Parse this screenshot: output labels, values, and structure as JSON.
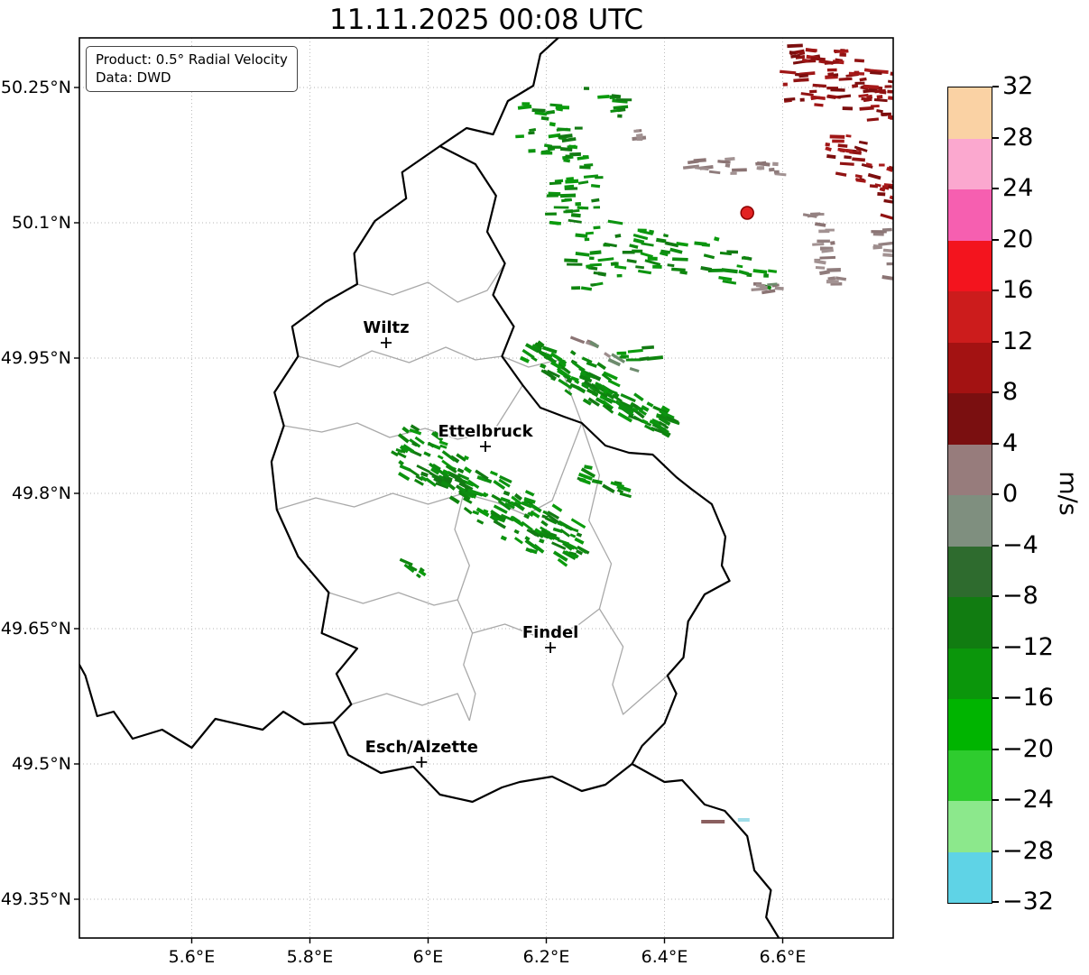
{
  "title": "11.11.2025 00:08 UTC",
  "annotation": {
    "product": "Product: 0.5° Radial Velocity",
    "source": "Data: DWD"
  },
  "map": {
    "lon_min": 5.41,
    "lon_max": 6.787,
    "lat_min": 49.307,
    "lat_max": 50.305
  },
  "axes": {
    "x_ticks": [
      {
        "value": 5.6,
        "label": "5.6°E"
      },
      {
        "value": 5.8,
        "label": "5.8°E"
      },
      {
        "value": 6.0,
        "label": "6°E"
      },
      {
        "value": 6.2,
        "label": "6.2°E"
      },
      {
        "value": 6.4,
        "label": "6.4°E"
      },
      {
        "value": 6.6,
        "label": "6.6°E"
      }
    ],
    "y_ticks": [
      {
        "value": 50.25,
        "label": "50.25°N"
      },
      {
        "value": 50.1,
        "label": "50.1°N"
      },
      {
        "value": 49.95,
        "label": "49.95°N"
      },
      {
        "value": 49.8,
        "label": "49.8°N"
      },
      {
        "value": 49.65,
        "label": "49.65°N"
      },
      {
        "value": 49.5,
        "label": "49.5°N"
      },
      {
        "value": 49.35,
        "label": "49.35°N"
      }
    ]
  },
  "colorbar": {
    "label": "m/s",
    "tick_labels": [
      "32",
      "28",
      "24",
      "20",
      "16",
      "12",
      "8",
      "4",
      "0",
      "−4",
      "−8",
      "−12",
      "−16",
      "−20",
      "−24",
      "−28",
      "−32"
    ],
    "segment_colors_top_to_bottom": [
      "#fad2a4",
      "#fba8cf",
      "#f65fb0",
      "#f3141e",
      "#cc1c1c",
      "#a31212",
      "#7a0f10",
      "#977c7c",
      "#7f8f7f",
      "#2e6b2e",
      "#117c11",
      "#0b960b",
      "#00b400",
      "#2ecc2e",
      "#8ce88c",
      "#5fd3e6"
    ]
  },
  "cities": [
    {
      "name": "Wiltz",
      "lon": 5.929,
      "lat": 49.967
    },
    {
      "name": "Ettelbruck",
      "lon": 6.097,
      "lat": 49.852
    },
    {
      "name": "Findel",
      "lon": 6.207,
      "lat": 49.629
    },
    {
      "name": "Esch/Alzette",
      "lon": 5.989,
      "lat": 49.502
    }
  ],
  "radar_site": {
    "lon": 6.54,
    "lat": 50.111,
    "color": "#e32222",
    "edge": "#8b0000"
  },
  "borders": {
    "country": [
      [
        [
          6.02,
          50.185
        ],
        [
          6.08,
          50.165
        ],
        [
          6.115,
          50.13
        ],
        [
          6.1,
          50.09
        ],
        [
          6.13,
          50.055
        ],
        [
          6.11,
          50.02
        ],
        [
          6.145,
          49.985
        ],
        [
          6.125,
          49.952
        ],
        [
          6.16,
          49.92
        ],
        [
          6.19,
          49.895
        ],
        [
          6.23,
          49.885
        ],
        [
          6.26,
          49.878
        ],
        [
          6.3,
          49.853
        ],
        [
          6.34,
          49.845
        ],
        [
          6.38,
          49.843
        ],
        [
          6.42,
          49.818
        ],
        [
          6.445,
          49.805
        ],
        [
          6.48,
          49.788
        ],
        [
          6.503,
          49.752
        ],
        [
          6.497,
          49.72
        ],
        [
          6.51,
          49.703
        ],
        [
          6.468,
          49.688
        ],
        [
          6.44,
          49.658
        ],
        [
          6.432,
          49.618
        ],
        [
          6.405,
          49.598
        ],
        [
          6.42,
          49.578
        ],
        [
          6.4,
          49.545
        ],
        [
          6.362,
          49.52
        ],
        [
          6.345,
          49.5
        ],
        [
          6.3,
          49.477
        ],
        [
          6.26,
          49.47
        ],
        [
          6.21,
          49.486
        ],
        [
          6.155,
          49.48
        ],
        [
          6.125,
          49.474
        ],
        [
          6.075,
          49.458
        ],
        [
          6.02,
          49.466
        ],
        [
          5.975,
          49.497
        ],
        [
          5.92,
          49.49
        ],
        [
          5.865,
          49.51
        ],
        [
          5.84,
          49.546
        ],
        [
          5.87,
          49.566
        ],
        [
          5.845,
          49.6
        ],
        [
          5.88,
          49.628
        ],
        [
          5.82,
          49.645
        ],
        [
          5.832,
          49.69
        ],
        [
          5.78,
          49.73
        ],
        [
          5.744,
          49.782
        ],
        [
          5.735,
          49.835
        ],
        [
          5.756,
          49.875
        ],
        [
          5.74,
          49.912
        ],
        [
          5.78,
          49.952
        ],
        [
          5.77,
          49.985
        ],
        [
          5.826,
          50.012
        ],
        [
          5.88,
          50.032
        ],
        [
          5.875,
          50.066
        ],
        [
          5.91,
          50.102
        ],
        [
          5.963,
          50.127
        ],
        [
          5.956,
          50.156
        ],
        [
          6.02,
          50.185
        ]
      ],
      [
        [
          6.02,
          50.185
        ],
        [
          6.065,
          50.205
        ],
        [
          6.11,
          50.198
        ],
        [
          6.135,
          50.235
        ],
        [
          6.178,
          50.252
        ],
        [
          6.19,
          50.287
        ],
        [
          6.232,
          50.312
        ]
      ],
      [
        [
          6.345,
          49.5
        ],
        [
          6.4,
          49.48
        ],
        [
          6.43,
          49.482
        ],
        [
          6.468,
          49.455
        ],
        [
          6.502,
          49.448
        ],
        [
          6.54,
          49.42
        ],
        [
          6.552,
          49.382
        ],
        [
          6.58,
          49.36
        ],
        [
          6.572,
          49.33
        ],
        [
          6.6,
          49.3
        ]
      ],
      [
        [
          5.84,
          49.546
        ],
        [
          5.79,
          49.544
        ],
        [
          5.755,
          49.558
        ],
        [
          5.72,
          49.538
        ],
        [
          5.64,
          49.55
        ],
        [
          5.6,
          49.518
        ],
        [
          5.55,
          49.538
        ],
        [
          5.5,
          49.528
        ],
        [
          5.468,
          49.558
        ],
        [
          5.44,
          49.553
        ],
        [
          5.42,
          49.598
        ],
        [
          5.405,
          49.616
        ]
      ]
    ],
    "district": [
      [
        [
          5.78,
          49.952
        ],
        [
          5.85,
          49.94
        ],
        [
          5.905,
          49.958
        ],
        [
          5.968,
          49.945
        ],
        [
          6.03,
          49.962
        ],
        [
          6.08,
          49.948
        ],
        [
          6.125,
          49.952
        ]
      ],
      [
        [
          5.756,
          49.875
        ],
        [
          5.82,
          49.868
        ],
        [
          5.88,
          49.878
        ],
        [
          5.935,
          49.862
        ],
        [
          5.995,
          49.872
        ],
        [
          6.05,
          49.86
        ],
        [
          6.11,
          49.868
        ],
        [
          6.16,
          49.92
        ]
      ],
      [
        [
          5.744,
          49.782
        ],
        [
          5.81,
          49.795
        ],
        [
          5.875,
          49.785
        ],
        [
          5.94,
          49.8
        ],
        [
          6.0,
          49.788
        ],
        [
          6.06,
          49.8
        ],
        [
          6.115,
          49.79
        ],
        [
          6.165,
          49.776
        ],
        [
          6.21,
          49.792
        ],
        [
          6.26,
          49.878
        ]
      ],
      [
        [
          6.06,
          49.8
        ],
        [
          6.045,
          49.76
        ],
        [
          6.07,
          49.72
        ],
        [
          6.05,
          49.682
        ],
        [
          6.075,
          49.645
        ],
        [
          6.06,
          49.61
        ],
        [
          6.08,
          49.578
        ],
        [
          6.07,
          49.548
        ]
      ],
      [
        [
          6.26,
          49.878
        ],
        [
          6.29,
          49.82
        ],
        [
          6.272,
          49.77
        ],
        [
          6.31,
          49.722
        ],
        [
          6.29,
          49.672
        ],
        [
          6.33,
          49.63
        ],
        [
          6.312,
          49.588
        ],
        [
          6.33,
          49.555
        ],
        [
          6.405,
          49.598
        ]
      ],
      [
        [
          5.832,
          49.69
        ],
        [
          5.89,
          49.678
        ],
        [
          5.95,
          49.69
        ],
        [
          6.01,
          49.676
        ],
        [
          6.05,
          49.682
        ]
      ],
      [
        [
          5.87,
          49.566
        ],
        [
          5.93,
          49.578
        ],
        [
          5.99,
          49.565
        ],
        [
          6.05,
          49.578
        ],
        [
          6.07,
          49.548
        ]
      ],
      [
        [
          6.075,
          49.645
        ],
        [
          6.13,
          49.655
        ],
        [
          6.19,
          49.64
        ],
        [
          6.25,
          49.652
        ],
        [
          6.29,
          49.672
        ]
      ],
      [
        [
          5.88,
          50.032
        ],
        [
          5.94,
          50.02
        ],
        [
          6.0,
          50.034
        ],
        [
          6.05,
          50.012
        ],
        [
          6.1,
          50.025
        ],
        [
          6.13,
          50.055
        ]
      ],
      [
        [
          6.125,
          49.952
        ],
        [
          6.17,
          49.94
        ],
        [
          6.22,
          49.948
        ],
        [
          6.26,
          49.878
        ]
      ]
    ]
  },
  "echoes": {
    "palettes": {
      "green": [
        "#0d8c10",
        "#0a9b0c",
        "#127a13",
        "#0c9410",
        "#0e850e"
      ],
      "darkred": [
        "#8e1111",
        "#9f1616",
        "#7c0e0e",
        "#a81a1a",
        "#911313"
      ],
      "gray": [
        "#9d8d8d",
        "#948181",
        "#8b7474",
        "#a29292",
        "#8f7c7c"
      ],
      "graymix": [
        "#9d8d8d",
        "#6d8b6d",
        "#8b7474"
      ]
    },
    "clusters": [
      {
        "lon": 6.245,
        "lat": 50.135,
        "angle": 72,
        "len": 110,
        "wid": 40,
        "n": 95,
        "palette": "green",
        "dash_rot": 0
      },
      {
        "lon": 6.291,
        "lat": 50.242,
        "angle": 20,
        "len": 35,
        "wid": 18,
        "n": 10,
        "palette": "green",
        "dash_rot": 0
      },
      {
        "lon": 6.46,
        "lat": 50.06,
        "angle": 10,
        "len": 82,
        "wid": 28,
        "n": 48,
        "palette": "green",
        "dash_rot": 8
      },
      {
        "lon": 6.36,
        "lat": 49.955,
        "angle": 0,
        "len": 25,
        "wid": 10,
        "n": 8,
        "palette": "green",
        "dash_rot": 0
      },
      {
        "lon": 6.715,
        "lat": 50.25,
        "angle": 12,
        "len": 72,
        "wid": 40,
        "n": 85,
        "palette": "darkred",
        "dash_rot": 0
      },
      {
        "lon": 6.75,
        "lat": 50.155,
        "angle": 45,
        "len": 58,
        "wid": 30,
        "n": 45,
        "palette": "darkred",
        "dash_rot": 10
      },
      {
        "lon": 6.66,
        "lat": 50.289,
        "angle": 0,
        "len": 32,
        "wid": 12,
        "n": 12,
        "palette": "darkred",
        "dash_rot": 0
      },
      {
        "lon": 6.527,
        "lat": 50.162,
        "angle": 5,
        "len": 58,
        "wid": 12,
        "n": 20,
        "palette": "gray",
        "dash_rot": 0
      },
      {
        "lon": 6.671,
        "lat": 50.072,
        "angle": 78,
        "len": 46,
        "wid": 14,
        "n": 22,
        "palette": "gray",
        "dash_rot": 0
      },
      {
        "lon": 6.775,
        "lat": 50.067,
        "angle": 80,
        "len": 32,
        "wid": 10,
        "n": 10,
        "palette": "gray",
        "dash_rot": 0
      },
      {
        "lon": 6.347,
        "lat": 50.197,
        "angle": 0,
        "len": 12,
        "wid": 6,
        "n": 5,
        "palette": "gray",
        "dash_rot": 0
      },
      {
        "lon": 6.294,
        "lat": 49.917,
        "angle": 31,
        "len": 90,
        "wid": 24,
        "n": 125,
        "palette": "green",
        "dash_rot": 28
      },
      {
        "lon": 6.306,
        "lat": 49.953,
        "angle": 28,
        "len": 44,
        "wid": 6,
        "n": 9,
        "palette": "graymix",
        "dash_rot": 25
      },
      {
        "lon": 6.103,
        "lat": 49.795,
        "angle": 31,
        "len": 120,
        "wid": 34,
        "n": 160,
        "palette": "green",
        "dash_rot": 28
      },
      {
        "lon": 6.298,
        "lat": 49.81,
        "angle": 25,
        "len": 28,
        "wid": 14,
        "n": 14,
        "palette": "green",
        "dash_rot": 20
      },
      {
        "lon": 6.225,
        "lat": 49.747,
        "angle": 25,
        "len": 22,
        "wid": 10,
        "n": 9,
        "palette": "green",
        "dash_rot": 20
      },
      {
        "lon": 5.979,
        "lat": 49.715,
        "angle": 40,
        "len": 14,
        "wid": 6,
        "n": 6,
        "palette": "green",
        "dash_rot": 30
      },
      {
        "lon": 6.576,
        "lat": 50.03,
        "angle": 0,
        "len": 16,
        "wid": 8,
        "n": 8,
        "palette": "graymix",
        "dash_rot": 0
      }
    ],
    "static_dashes": [
      {
        "lon": 6.482,
        "lat": 49.436,
        "w": 26,
        "color": "#8a5f5f"
      },
      {
        "lon": 6.534,
        "lat": 49.438,
        "w": 13,
        "color": "#9fdce8"
      }
    ]
  },
  "chart_data": {
    "type": "heatmap",
    "subtype": "radar-radial-velocity-map",
    "title": "11.11.2025 00:08 UTC",
    "product": "0.5° Radial Velocity",
    "data_source": "DWD",
    "units": "m/s",
    "lon_range": [
      5.41,
      6.79
    ],
    "lat_range": [
      49.31,
      50.31
    ],
    "x_tick_labels": [
      "5.6°E",
      "5.8°E",
      "6°E",
      "6.2°E",
      "6.4°E",
      "6.6°E"
    ],
    "y_tick_labels": [
      "50.25°N",
      "50.1°N",
      "49.95°N",
      "49.8°N",
      "49.65°N",
      "49.5°N",
      "49.35°N"
    ],
    "grid": true,
    "legend_position": "right-colorbar",
    "colorbar": {
      "min": -32,
      "max": 32,
      "step": 4,
      "label": "m/s"
    },
    "cities": [
      {
        "name": "Wiltz",
        "lon": 5.93,
        "lat": 49.97
      },
      {
        "name": "Ettelbruck",
        "lon": 6.1,
        "lat": 49.85
      },
      {
        "name": "Findel",
        "lon": 6.21,
        "lat": 49.63
      },
      {
        "name": "Esch/Alzette",
        "lon": 5.99,
        "lat": 49.5
      }
    ],
    "radar_site_lonlat": [
      6.54,
      50.11
    ],
    "echo_regions": [
      {
        "area": "north of Luxembourg border (6.15E-6.35E, 50.00N-50.25N)",
        "radial_velocity_m_s": -12,
        "appearance": "green"
      },
      {
        "area": "east-northeast (6.33E-6.59E, 49.97N-50.12N)",
        "radial_velocity_m_s": -10,
        "appearance": "green"
      },
      {
        "area": "far northeast corner (6.60E-6.79E, 50.05N-50.31N)",
        "radial_velocity_m_s": 10,
        "appearance": "dark red"
      },
      {
        "area": "near-zero patches (6.44E-6.70E, 50.00N-50.17N)",
        "radial_velocity_m_s": 1,
        "appearance": "gray"
      },
      {
        "area": "band northeast of Ettelbruck (6.16E-6.42E, 49.87N-49.96N)",
        "radial_velocity_m_s": -12,
        "appearance": "green"
      },
      {
        "area": "central band west of Ettelbruck (5.95E-6.26E, 49.69N-49.82N)",
        "radial_velocity_m_s": -12,
        "appearance": "green"
      },
      {
        "area": "small patch southeast (6.47E-6.54E, 49.44N)",
        "radial_velocity_m_s": 2,
        "appearance": "maroon and cyan"
      }
    ]
  }
}
